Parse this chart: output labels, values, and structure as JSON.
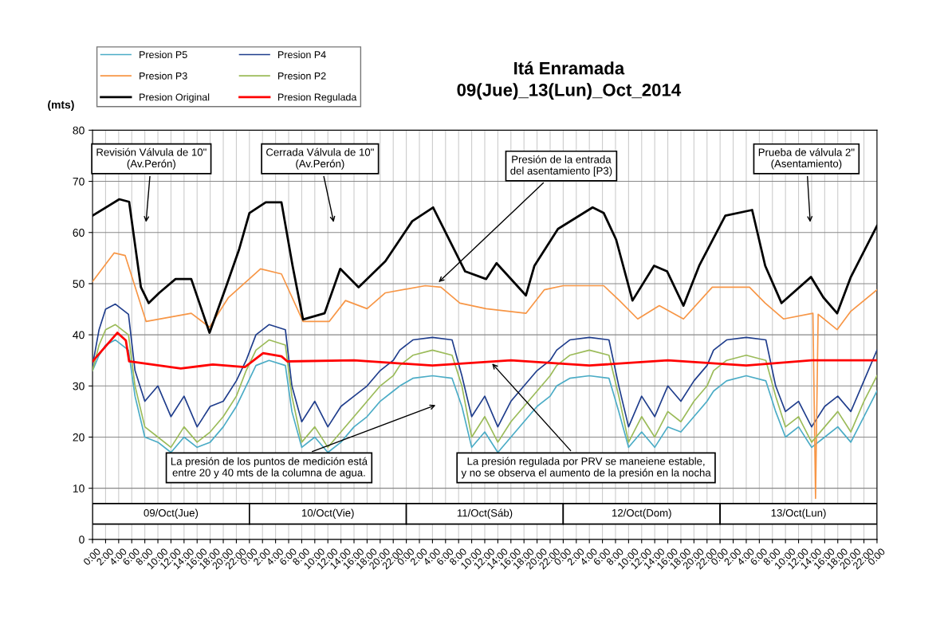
{
  "chart_data": {
    "type": "line",
    "title": "Itá Enramada\n09(Jue)_13(Lun)_Oct_2014",
    "ylabel": "(mts)",
    "x": [
      "2014-10-09T00:00",
      "2014-10-09T01:00",
      "2014-10-09T02:00",
      "2014-10-09T03:30",
      "2014-10-09T05:30",
      "2014-10-09T06:30",
      "2014-10-09T08:00",
      "2014-10-09T10:00",
      "2014-10-09T12:00",
      "2014-10-09T14:00",
      "2014-10-09T16:00",
      "2014-10-09T18:00",
      "2014-10-09T20:00",
      "2014-10-09T22:00",
      "2014-10-09T23:30",
      "2014-10-10T01:00",
      "2014-10-10T03:00",
      "2014-10-10T05:30",
      "2014-10-10T06:30",
      "2014-10-10T08:00",
      "2014-10-10T10:00",
      "2014-10-10T12:00",
      "2014-10-10T14:00",
      "2014-10-10T16:00",
      "2014-10-10T18:00",
      "2014-10-10T20:00",
      "2014-10-10T22:00",
      "2014-10-10T23:00",
      "2014-10-11T01:00",
      "2014-10-11T04:00",
      "2014-10-11T07:00",
      "2014-10-11T08:30",
      "2014-10-11T10:00",
      "2014-10-11T12:00",
      "2014-10-11T14:00",
      "2014-10-11T16:00",
      "2014-10-11T18:00",
      "2014-10-11T20:00",
      "2014-10-11T22:00",
      "2014-10-11T23:00",
      "2014-10-12T01:00",
      "2014-10-12T04:00",
      "2014-10-12T07:00",
      "2014-10-12T08:30",
      "2014-10-12T10:00",
      "2014-10-12T12:00",
      "2014-10-12T14:00",
      "2014-10-12T16:00",
      "2014-10-12T18:00",
      "2014-10-12T20:00",
      "2014-10-12T22:00",
      "2014-10-12T23:00",
      "2014-10-13T01:00",
      "2014-10-13T04:00",
      "2014-10-13T07:00",
      "2014-10-13T08:30",
      "2014-10-13T10:00",
      "2014-10-13T12:00",
      "2014-10-13T14:00",
      "2014-10-13T16:00",
      "2014-10-13T18:00",
      "2014-10-13T20:00",
      "2014-10-13T22:00",
      "2014-10-14T00:00"
    ],
    "series": [
      {
        "name": "Presion P5",
        "color": "#4bacc6",
        "values": [
          33,
          36,
          38,
          39,
          37,
          28,
          20,
          19,
          17,
          20,
          18,
          19,
          22,
          26,
          30,
          34,
          35,
          34,
          25,
          18,
          20,
          17,
          19,
          22,
          24,
          27,
          29,
          30,
          31.5,
          32,
          31.5,
          26,
          18,
          21,
          17,
          20,
          23,
          26,
          28,
          30,
          31.5,
          32,
          31.5,
          25,
          18,
          21,
          18,
          22,
          21,
          24,
          27,
          29,
          31,
          32,
          31,
          25,
          20,
          22,
          18,
          20,
          22,
          19,
          24,
          29
        ]
      },
      {
        "name": "Presion P4",
        "color": "#1f3d8c",
        "values": [
          34,
          41,
          45,
          46,
          44,
          33,
          27,
          30,
          24,
          28,
          22,
          26,
          27,
          31,
          35,
          40,
          42,
          41,
          30,
          23,
          27,
          22,
          26,
          28,
          30,
          33,
          35,
          37,
          39,
          39.5,
          39,
          32,
          24,
          28,
          22,
          27,
          30,
          33,
          35,
          37,
          39,
          39.5,
          39,
          30,
          22,
          28,
          24,
          30,
          27,
          31,
          34,
          37,
          39,
          39.5,
          39,
          30,
          25,
          27,
          22,
          26,
          28,
          25,
          31,
          37
        ]
      },
      {
        "name": "Presion P3",
        "color": "#f79646",
        "x": [
          "2014-10-09T00:00",
          "2014-10-09T03:18",
          "2014-10-09T05:00",
          "2014-10-09T08:12",
          "2014-10-09T15:06",
          "2014-10-09T17:54",
          "2014-10-09T20:48",
          "2014-10-10T01:42",
          "2014-10-10T04:54",
          "2014-10-10T08:12",
          "2014-10-10T12:12",
          "2014-10-10T14:42",
          "2014-10-10T18:00",
          "2014-10-10T20:48",
          "2014-10-11T02:54",
          "2014-10-11T05:18",
          "2014-10-11T08:12",
          "2014-10-11T12:12",
          "2014-10-11T18:18",
          "2014-10-11T21:06",
          "2014-10-12T00:00",
          "2014-10-12T06:12",
          "2014-10-12T08:36",
          "2014-10-12T11:24",
          "2014-10-12T14:42",
          "2014-10-12T18:24",
          "2014-10-12T22:48",
          "2014-10-13T04:30",
          "2014-10-13T06:54",
          "2014-10-13T09:42",
          "2014-10-13T14:12",
          "2014-10-13T14:36",
          "2014-10-13T15:00",
          "2014-10-13T17:54",
          "2014-10-13T20:00",
          "2014-10-14T00:00"
        ],
        "values": [
          50.4,
          56,
          55.5,
          42.6,
          44.2,
          41.5,
          47.3,
          52.9,
          51.9,
          42.6,
          42.6,
          46.7,
          45.1,
          48.2,
          49.6,
          49.3,
          46.2,
          45.1,
          44.2,
          48.8,
          49.6,
          49.6,
          46.7,
          43.1,
          45.7,
          43.1,
          49.3,
          49.3,
          46.2,
          43.1,
          44.2,
          8,
          44,
          41,
          44.6,
          48.8
        ]
      },
      {
        "name": "Presion P2",
        "color": "#9bbb59",
        "values": [
          33,
          38,
          41,
          42,
          40,
          30,
          22,
          20,
          18,
          22,
          19,
          21,
          24,
          28,
          33,
          37,
          39,
          38,
          28,
          19,
          22,
          18,
          21,
          24,
          27,
          30,
          32,
          34,
          36,
          37,
          36,
          30,
          20,
          24,
          19,
          23,
          26,
          29,
          32,
          34,
          36,
          37,
          36,
          28,
          19,
          24,
          20,
          25,
          23,
          27,
          30,
          33,
          35,
          36,
          35,
          28,
          22,
          24,
          19,
          22,
          25,
          21,
          27,
          32
        ]
      },
      {
        "name": "Presion Original",
        "color": "#000000",
        "x": [
          "2014-10-09T00:00",
          "2014-10-09T04:06",
          "2014-10-09T05:36",
          "2014-10-09T07:24",
          "2014-10-09T08:36",
          "2014-10-09T10:12",
          "2014-10-09T12:42",
          "2014-10-09T15:06",
          "2014-10-09T17:54",
          "2014-10-09T20:24",
          "2014-10-09T22:24",
          "2014-10-10T00:00",
          "2014-10-10T02:30",
          "2014-10-10T04:54",
          "2014-10-10T06:36",
          "2014-10-10T08:12",
          "2014-10-10T11:30",
          "2014-10-10T13:54",
          "2014-10-10T16:42",
          "2014-10-10T20:48",
          "2014-10-11T00:54",
          "2014-10-11T04:06",
          "2014-10-11T07:00",
          "2014-10-11T09:00",
          "2014-10-11T12:12",
          "2014-10-11T13:48",
          "2014-10-11T18:18",
          "2014-10-11T19:36",
          "2014-10-11T23:12",
          "2014-10-12T04:30",
          "2014-10-12T06:12",
          "2014-10-12T08:06",
          "2014-10-12T10:36",
          "2014-10-12T13:54",
          "2014-10-12T15:54",
          "2014-10-12T18:24",
          "2014-10-12T20:48",
          "2014-10-13T00:48",
          "2014-10-13T04:54",
          "2014-10-13T06:54",
          "2014-10-13T09:24",
          "2014-10-13T13:54",
          "2014-10-13T15:48",
          "2014-10-13T17:54",
          "2014-10-13T20:00",
          "2014-10-14T00:00"
        ],
        "values": [
          63.3,
          66.5,
          66,
          49.3,
          46.2,
          48.2,
          50.9,
          50.9,
          40.4,
          49.3,
          56.6,
          63.8,
          65.9,
          65.9,
          53.5,
          43,
          44.2,
          52.9,
          49.3,
          54.4,
          62.2,
          64.9,
          57.5,
          52.4,
          50.9,
          54,
          47.7,
          53.5,
          60.7,
          64.9,
          63.8,
          58.6,
          46.7,
          53.5,
          52.4,
          45.7,
          53.5,
          63.3,
          64.4,
          53.5,
          46.2,
          51.3,
          47.3,
          44.2,
          51.3,
          61.3
        ]
      },
      {
        "name": "Presion Regulada",
        "color": "#ff0000",
        "x": [
          "2014-10-09T00:00",
          "2014-10-09T03:48",
          "2014-10-09T05:06",
          "2014-10-09T05:36",
          "2014-10-09T13:30",
          "2014-10-09T18:24",
          "2014-10-09T23:18",
          "2014-10-10T02:06",
          "2014-10-10T04:54",
          "2014-10-10T05:48",
          "2014-10-10T16:00",
          "2014-10-11T04:00",
          "2014-10-11T16:00",
          "2014-10-12T04:00",
          "2014-10-12T16:00",
          "2014-10-13T04:00",
          "2014-10-13T14:00",
          "2014-10-14T00:00"
        ],
        "values": [
          34.8,
          40.4,
          38.9,
          34.8,
          33.4,
          34.2,
          33.7,
          36.4,
          35.8,
          34.8,
          35,
          34,
          35,
          34,
          35,
          34,
          35,
          35
        ]
      }
    ],
    "xlim": [
      "2014-10-09T00:00",
      "2014-10-14T00:00"
    ],
    "xticks": [
      {
        "value": "2014-10-09T00:00",
        "label": "0:00"
      },
      {
        "value": "2014-10-09T02:00",
        "label": "2:00"
      },
      {
        "value": "2014-10-09T04:00",
        "label": "4:00"
      },
      {
        "value": "2014-10-09T06:00",
        "label": "6:00"
      },
      {
        "value": "2014-10-09T08:00",
        "label": "8:00"
      },
      {
        "value": "2014-10-09T10:00",
        "label": "10:00"
      },
      {
        "value": "2014-10-09T12:00",
        "label": "12:00"
      },
      {
        "value": "2014-10-09T14:00",
        "label": "14:00"
      },
      {
        "value": "2014-10-09T16:00",
        "label": "16:00"
      },
      {
        "value": "2014-10-09T18:00",
        "label": "18:00"
      },
      {
        "value": "2014-10-09T20:00",
        "label": "20:00"
      },
      {
        "value": "2014-10-09T22:00",
        "label": "22:00"
      },
      {
        "value": "2014-10-10T00:00",
        "label": "0:00"
      },
      {
        "value": "2014-10-10T02:00",
        "label": "2:00"
      },
      {
        "value": "2014-10-10T04:00",
        "label": "4:00"
      },
      {
        "value": "2014-10-10T06:00",
        "label": "6:00"
      },
      {
        "value": "2014-10-10T08:00",
        "label": "8:00"
      },
      {
        "value": "2014-10-10T10:00",
        "label": "10:00"
      },
      {
        "value": "2014-10-10T12:00",
        "label": "12:00"
      },
      {
        "value": "2014-10-10T14:00",
        "label": "14:00"
      },
      {
        "value": "2014-10-10T16:00",
        "label": "16:00"
      },
      {
        "value": "2014-10-10T18:00",
        "label": "18:00"
      },
      {
        "value": "2014-10-10T20:00",
        "label": "20:00"
      },
      {
        "value": "2014-10-10T22:00",
        "label": "22:00"
      },
      {
        "value": "2014-10-11T00:00",
        "label": "0:00"
      },
      {
        "value": "2014-10-11T02:00",
        "label": "2:00"
      },
      {
        "value": "2014-10-11T04:00",
        "label": "4:00"
      },
      {
        "value": "2014-10-11T06:00",
        "label": "6:00"
      },
      {
        "value": "2014-10-11T08:00",
        "label": "8:00"
      },
      {
        "value": "2014-10-11T10:00",
        "label": "10:00"
      },
      {
        "value": "2014-10-11T12:00",
        "label": "12:00"
      },
      {
        "value": "2014-10-11T14:00",
        "label": "14:00"
      },
      {
        "value": "2014-10-11T16:00",
        "label": "16:00"
      },
      {
        "value": "2014-10-11T18:00",
        "label": "18:00"
      },
      {
        "value": "2014-10-11T20:00",
        "label": "20:00"
      },
      {
        "value": "2014-10-11T22:00",
        "label": "22:00"
      },
      {
        "value": "2014-10-12T00:00",
        "label": "0:00"
      },
      {
        "value": "2014-10-12T02:00",
        "label": "2:00"
      },
      {
        "value": "2014-10-12T04:00",
        "label": "4:00"
      },
      {
        "value": "2014-10-12T06:00",
        "label": "6:00"
      },
      {
        "value": "2014-10-12T08:00",
        "label": "8:00"
      },
      {
        "value": "2014-10-12T10:00",
        "label": "10:00"
      },
      {
        "value": "2014-10-12T12:00",
        "label": "12:00"
      },
      {
        "value": "2014-10-12T14:00",
        "label": "14:00"
      },
      {
        "value": "2014-10-12T16:00",
        "label": "16:00"
      },
      {
        "value": "2014-10-12T18:00",
        "label": "18:00"
      },
      {
        "value": "2014-10-12T20:00",
        "label": "20:00"
      },
      {
        "value": "2014-10-12T22:00",
        "label": "22:00"
      },
      {
        "value": "2014-10-13T00:00",
        "label": "0:00"
      },
      {
        "value": "2014-10-13T02:00",
        "label": "2:00"
      },
      {
        "value": "2014-10-13T04:00",
        "label": "4:00"
      },
      {
        "value": "2014-10-13T06:00",
        "label": "6:00"
      },
      {
        "value": "2014-10-13T08:00",
        "label": "8:00"
      },
      {
        "value": "2014-10-13T10:00",
        "label": "10:00"
      },
      {
        "value": "2014-10-13T12:00",
        "label": "12:00"
      },
      {
        "value": "2014-10-13T14:00",
        "label": "14:00"
      },
      {
        "value": "2014-10-13T16:00",
        "label": "16:00"
      },
      {
        "value": "2014-10-13T18:00",
        "label": "18:00"
      },
      {
        "value": "2014-10-13T20:00",
        "label": "20:00"
      },
      {
        "value": "2014-10-13T22:00",
        "label": "22:00"
      },
      {
        "value": "2014-10-14T00:00",
        "label": "0:00"
      }
    ],
    "ylim": [
      0,
      80
    ],
    "yticks": [
      0,
      10,
      20,
      30,
      40,
      50,
      60,
      70,
      80
    ],
    "grid": true,
    "legend": "top left",
    "line_style": "solid",
    "marker": "none",
    "annotations": [
      "Revisión Válvula de 10\"\n(Av.Perón)",
      "Cerrada Válvula de 10\"\n(Av.Perón)",
      {
        "text": "Presión de la entrada\ndel asentamiento [P3)",
        "x": "2014-10-11T04:42",
        "y": 50
      },
      "Prueba de válvula 2\"\n(Asentamiento)",
      "La presión de los puntos de medición está\nentre 20 y 40 mts de la columna de agua.",
      {
        "text": "La presión regulada por PRV se maneiene estable,\ny no se observa el aumento de la presión en la nocha",
        "x": "2014-10-11T12:54",
        "y": 34.7
      },
      "09/Oct(Jue)",
      "10/Oct(Vie)",
      "11/Oct(Sáb)",
      "12/Oct(Dom)",
      "13/Oct(Lun)"
    ]
  }
}
